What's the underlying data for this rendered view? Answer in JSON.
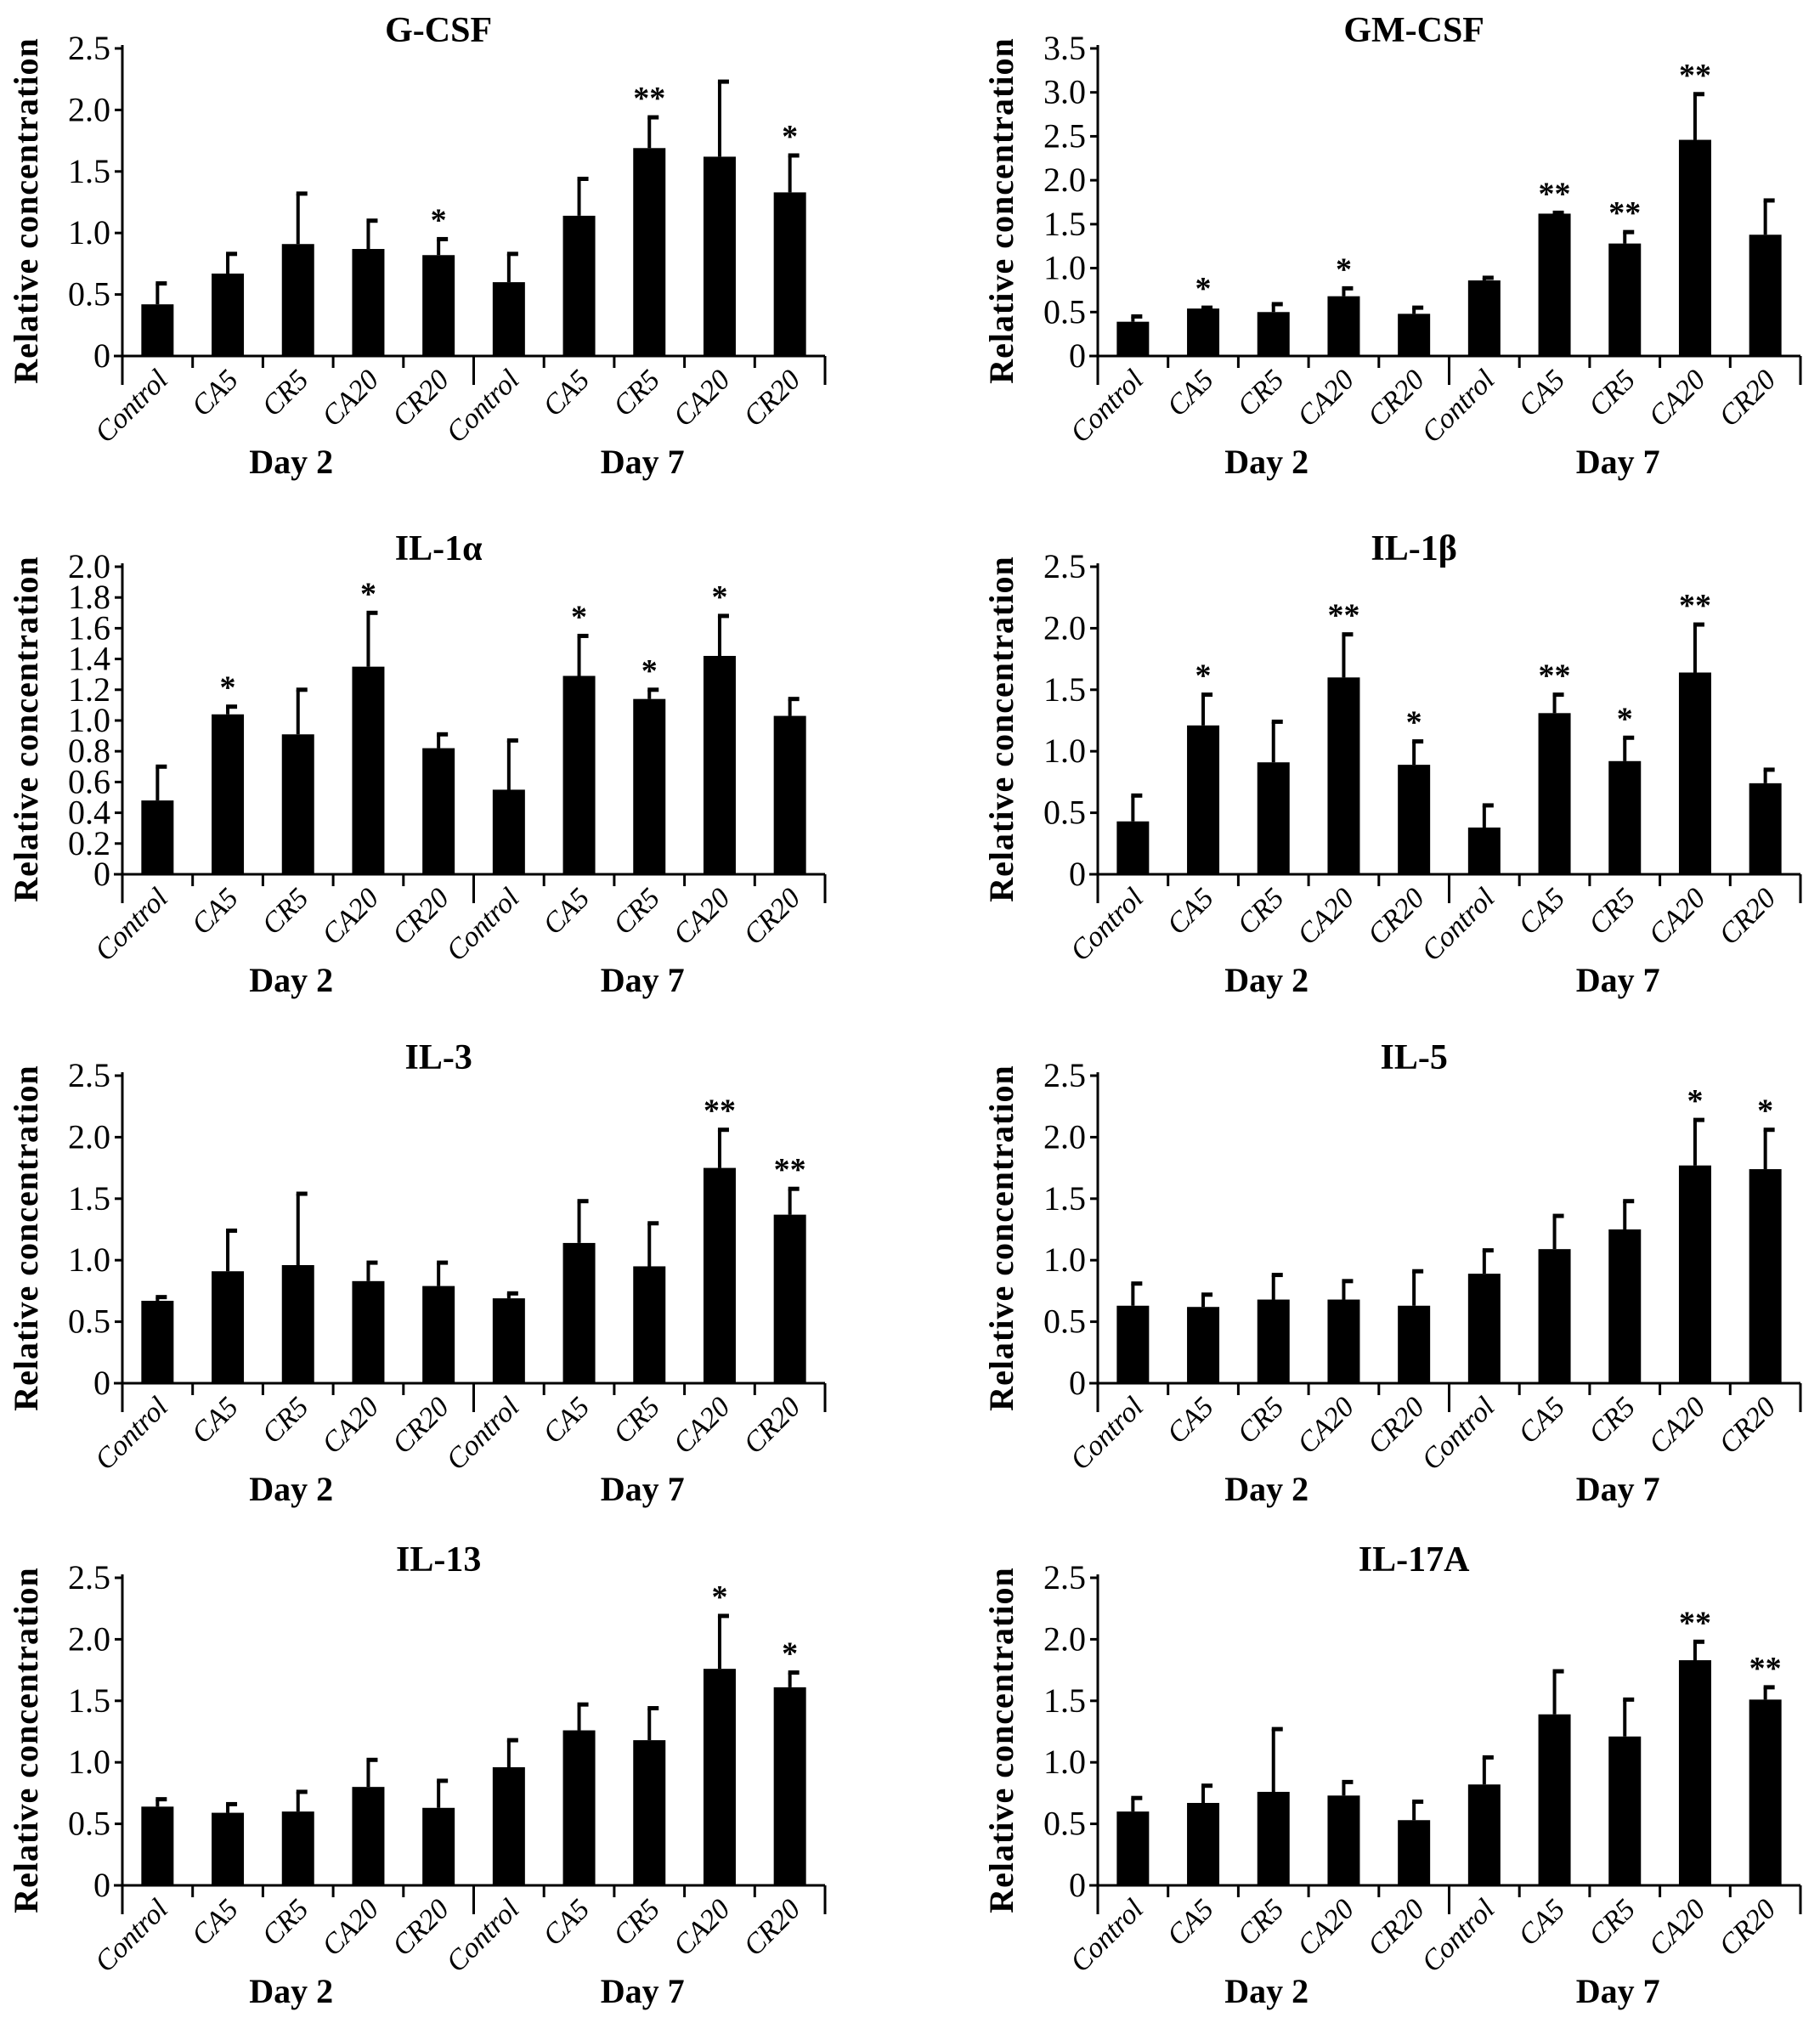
{
  "chart_data": [
    {
      "type": "bar",
      "title": "G-CSF",
      "ylabel": "Relative concentration",
      "ylim": [
        0,
        2.5
      ],
      "yticks": [
        "0",
        "0.5",
        "1.0",
        "1.5",
        "2.0",
        "2.5"
      ],
      "ytick_values": [
        0,
        0.5,
        1.0,
        1.5,
        2.0,
        2.5
      ],
      "categories": [
        "Control",
        "CA5",
        "CR5",
        "CA20",
        "CR20",
        "Control",
        "CA5",
        "CR5",
        "CA20",
        "CR20"
      ],
      "groups": [
        "Day 2",
        "Day 7"
      ],
      "values": [
        0.42,
        0.67,
        0.91,
        0.87,
        0.82,
        0.6,
        1.14,
        1.69,
        1.62,
        1.33
      ],
      "error_upper": [
        0.59,
        0.83,
        1.32,
        1.1,
        0.95,
        0.83,
        1.44,
        1.94,
        2.23,
        1.63
      ],
      "significance": [
        "",
        "",
        "",
        "",
        "*",
        "",
        "",
        "**",
        "",
        "*"
      ]
    },
    {
      "type": "bar",
      "title": "GM-CSF",
      "ylabel": "Relative concentration",
      "ylim": [
        0,
        3.5
      ],
      "yticks": [
        "0",
        "0.5",
        "1.0",
        "1.5",
        "2.0",
        "2.5",
        "3.0",
        "3.5"
      ],
      "ytick_values": [
        0,
        0.5,
        1.0,
        1.5,
        2.0,
        2.5,
        3.0,
        3.5
      ],
      "categories": [
        "Control",
        "CA5",
        "CR5",
        "CA20",
        "CR20",
        "Control",
        "CA5",
        "CR5",
        "CA20",
        "CR20"
      ],
      "groups": [
        "Day 2",
        "Day 7"
      ],
      "values": [
        0.39,
        0.54,
        0.5,
        0.68,
        0.48,
        0.86,
        1.62,
        1.28,
        2.46,
        1.38
      ],
      "error_upper": [
        0.45,
        0.55,
        0.59,
        0.77,
        0.55,
        0.89,
        1.63,
        1.41,
        2.98,
        1.77
      ],
      "significance": [
        "",
        "*",
        "",
        "*",
        "",
        "",
        "**",
        "**",
        "**",
        ""
      ]
    },
    {
      "type": "bar",
      "title": "IL-1α",
      "ylabel": "Relative concentration",
      "ylim": [
        0,
        2.0
      ],
      "yticks": [
        "0",
        "0.2",
        "0.4",
        "0.6",
        "0.8",
        "1.0",
        "1.2",
        "1.4",
        "1.6",
        "1.8",
        "2.0"
      ],
      "ytick_values": [
        0,
        0.2,
        0.4,
        0.6,
        0.8,
        1.0,
        1.2,
        1.4,
        1.6,
        1.8,
        2.0
      ],
      "categories": [
        "Control",
        "CA5",
        "CR5",
        "CA20",
        "CR20",
        "Control",
        "CA5",
        "CR5",
        "CA20",
        "CR20"
      ],
      "groups": [
        "Day 2",
        "Day 7"
      ],
      "values": [
        0.48,
        1.04,
        0.91,
        1.35,
        0.82,
        0.55,
        1.29,
        1.14,
        1.42,
        1.03
      ],
      "error_upper": [
        0.7,
        1.09,
        1.2,
        1.7,
        0.91,
        0.87,
        1.55,
        1.2,
        1.68,
        1.14
      ],
      "significance": [
        "",
        "*",
        "",
        "*",
        "",
        "",
        "*",
        "*",
        "*",
        ""
      ]
    },
    {
      "type": "bar",
      "title": "IL-1β",
      "ylabel": "Relative concentration",
      "ylim": [
        0,
        2.5
      ],
      "yticks": [
        "0",
        "0.5",
        "1.0",
        "1.5",
        "2.0",
        "2.5"
      ],
      "ytick_values": [
        0,
        0.5,
        1.0,
        1.5,
        2.0,
        2.5
      ],
      "categories": [
        "Control",
        "CA5",
        "CR5",
        "CA20",
        "CR20",
        "Control",
        "CA5",
        "CR5",
        "CA20",
        "CR20"
      ],
      "groups": [
        "Day 2",
        "Day 7"
      ],
      "values": [
        0.43,
        1.21,
        0.91,
        1.6,
        0.89,
        0.38,
        1.31,
        0.92,
        1.64,
        0.74
      ],
      "error_upper": [
        0.64,
        1.46,
        1.24,
        1.95,
        1.08,
        0.56,
        1.46,
        1.11,
        2.03,
        0.85
      ],
      "significance": [
        "",
        "*",
        "",
        "**",
        "*",
        "",
        "**",
        "*",
        "**",
        ""
      ]
    },
    {
      "type": "bar",
      "title": "IL-3",
      "ylabel": "Relative concentration",
      "ylim": [
        0,
        2.5
      ],
      "yticks": [
        "0",
        "0.5",
        "1.0",
        "1.5",
        "2.0",
        "2.5"
      ],
      "ytick_values": [
        0,
        0.5,
        1.0,
        1.5,
        2.0,
        2.5
      ],
      "categories": [
        "Control",
        "CA5",
        "CR5",
        "CA20",
        "CR20",
        "Control",
        "CA5",
        "CR5",
        "CA20",
        "CR20"
      ],
      "groups": [
        "Day 2",
        "Day 7"
      ],
      "values": [
        0.67,
        0.91,
        0.96,
        0.83,
        0.79,
        0.69,
        1.14,
        0.95,
        1.75,
        1.37
      ],
      "error_upper": [
        0.7,
        1.24,
        1.54,
        0.98,
        0.98,
        0.73,
        1.48,
        1.3,
        2.06,
        1.58
      ],
      "significance": [
        "",
        "",
        "",
        "",
        "",
        "",
        "",
        "",
        "**",
        "**"
      ]
    },
    {
      "type": "bar",
      "title": "IL-5",
      "ylabel": "Relative concentration",
      "ylim": [
        0,
        2.5
      ],
      "yticks": [
        "0",
        "0.5",
        "1.0",
        "1.5",
        "2.0",
        "2.5"
      ],
      "ytick_values": [
        0,
        0.5,
        1.0,
        1.5,
        2.0,
        2.5
      ],
      "categories": [
        "Control",
        "CA5",
        "CR5",
        "CA20",
        "CR20",
        "Control",
        "CA5",
        "CR5",
        "CA20",
        "CR20"
      ],
      "groups": [
        "Day 2",
        "Day 7"
      ],
      "values": [
        0.63,
        0.62,
        0.68,
        0.68,
        0.63,
        0.89,
        1.09,
        1.25,
        1.77,
        1.74
      ],
      "error_upper": [
        0.81,
        0.72,
        0.88,
        0.83,
        0.91,
        1.08,
        1.36,
        1.48,
        2.14,
        2.06
      ],
      "significance": [
        "",
        "",
        "",
        "",
        "",
        "",
        "",
        "",
        "*",
        "*"
      ]
    },
    {
      "type": "bar",
      "title": "IL-13",
      "ylabel": "Relative concentration",
      "ylim": [
        0,
        2.5
      ],
      "yticks": [
        "0",
        "0.5",
        "1.0",
        "1.5",
        "2.0",
        "2.5"
      ],
      "ytick_values": [
        0,
        0.5,
        1.0,
        1.5,
        2.0,
        2.5
      ],
      "categories": [
        "Control",
        "CA5",
        "CR5",
        "CA20",
        "CR20",
        "Control",
        "CA5",
        "CR5",
        "CA20",
        "CR20"
      ],
      "groups": [
        "Day 2",
        "Day 7"
      ],
      "values": [
        0.64,
        0.59,
        0.6,
        0.8,
        0.63,
        0.96,
        1.26,
        1.18,
        1.76,
        1.61
      ],
      "error_upper": [
        0.7,
        0.66,
        0.76,
        1.02,
        0.85,
        1.18,
        1.47,
        1.44,
        2.19,
        1.73
      ],
      "significance": [
        "",
        "",
        "",
        "",
        "",
        "",
        "",
        "",
        "*",
        "*"
      ]
    },
    {
      "type": "bar",
      "title": "IL-17A",
      "ylabel": "Relative concentration",
      "ylim": [
        0,
        2.5
      ],
      "yticks": [
        "0",
        "0.5",
        "1.0",
        "1.5",
        "2.0",
        "2.5"
      ],
      "ytick_values": [
        0,
        0.5,
        1.0,
        1.5,
        2.0,
        2.5
      ],
      "categories": [
        "Control",
        "CA5",
        "CR5",
        "CA20",
        "CR20",
        "Control",
        "CA5",
        "CR5",
        "CA20",
        "CR20"
      ],
      "groups": [
        "Day 2",
        "Day 7"
      ],
      "values": [
        0.6,
        0.67,
        0.76,
        0.73,
        0.53,
        0.82,
        1.39,
        1.21,
        1.83,
        1.51
      ],
      "error_upper": [
        0.71,
        0.81,
        1.27,
        0.84,
        0.68,
        1.04,
        1.74,
        1.51,
        1.98,
        1.61
      ],
      "significance": [
        "",
        "",
        "",
        "",
        "",
        "",
        "",
        "",
        "**",
        "**"
      ]
    }
  ]
}
